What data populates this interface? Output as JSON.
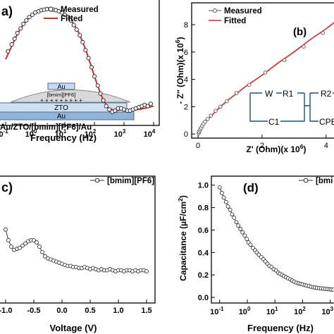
{
  "chart_data": [
    {
      "panel": "a",
      "panel_label": "a)",
      "type": "scatter",
      "xscale": "log",
      "xlabel": "Frequency (Hz)",
      "xlim": [
        0.1,
        10000
      ],
      "xticks": [
        {
          "value": 0.1,
          "base": "10",
          "exp": "-1"
        },
        {
          "value": 1,
          "base": "10",
          "exp": "0"
        },
        {
          "value": 10,
          "base": "10",
          "exp": "1"
        },
        {
          "value": 100,
          "base": "10",
          "exp": "2"
        },
        {
          "value": 1000,
          "base": "10",
          "exp": "3"
        },
        {
          "value": 10000,
          "base": "10",
          "exp": "4"
        }
      ],
      "ylim": [
        0,
        1
      ],
      "legend": "top-right",
      "series": [
        {
          "name": "Measured",
          "style": "open-circle",
          "color": "#222222",
          "x": [
            0.12,
            0.16,
            0.2,
            0.25,
            0.32,
            0.4,
            0.5,
            0.63,
            0.8,
            1,
            1.3,
            1.6,
            2,
            2.5,
            3.2,
            4,
            5,
            6.3,
            8,
            10,
            13,
            16,
            20,
            25,
            32,
            40,
            50,
            63,
            80,
            100,
            130,
            160,
            200,
            250,
            320,
            400,
            500,
            630,
            800,
            1000,
            1300,
            1600,
            2000,
            2500,
            3200,
            4000,
            5000,
            6300,
            8000
          ],
          "y": [
            0.6,
            0.66,
            0.71,
            0.76,
            0.8,
            0.84,
            0.87,
            0.9,
            0.92,
            0.94,
            0.95,
            0.96,
            0.965,
            0.97,
            0.97,
            0.965,
            0.96,
            0.95,
            0.94,
            0.92,
            0.9,
            0.87,
            0.83,
            0.79,
            0.74,
            0.68,
            0.61,
            0.54,
            0.46,
            0.38,
            0.3,
            0.23,
            0.17,
            0.12,
            0.09,
            0.07,
            0.08,
            0.1,
            0.1,
            0.09,
            0.08,
            0.08,
            0.09,
            0.1,
            0.11,
            0.12,
            0.13,
            0.12,
            0.14
          ]
        },
        {
          "name": "Fitted",
          "style": "line",
          "color": "#d62728",
          "x": [
            0.1,
            0.2,
            0.3,
            0.5,
            0.8,
            1,
            1.5,
            2,
            3,
            5,
            8,
            10,
            15,
            20,
            30,
            50,
            80,
            100,
            150,
            200,
            300,
            500,
            800,
            1000,
            1500,
            2000,
            3000,
            5000,
            10000
          ],
          "y": [
            0.53,
            0.7,
            0.79,
            0.87,
            0.92,
            0.94,
            0.96,
            0.965,
            0.965,
            0.955,
            0.935,
            0.92,
            0.88,
            0.84,
            0.76,
            0.62,
            0.46,
            0.38,
            0.25,
            0.17,
            0.1,
            0.08,
            0.09,
            0.09,
            0.085,
            0.085,
            0.09,
            0.1,
            0.12
          ]
        }
      ],
      "inset": {
        "labels": [
          "Au",
          "[bmim][PF6]",
          "+ + + + + + + + +",
          "ZTO",
          "Au"
        ],
        "caption": "Au/ZTO/[bmim][PF6]/Au"
      }
    },
    {
      "panel": "b",
      "panel_label": "(b)",
      "type": "scatter",
      "xlabel_parts": {
        "pre": "Z' (Ohm)(x 10",
        "exp": "6",
        "post": ")"
      },
      "ylabel_parts": {
        "pre": "- Z'' (Ohm)(x 10",
        "exp": "6",
        "post": ")"
      },
      "xlim": [
        -0.2,
        4.6
      ],
      "ylim": [
        -0.3,
        9.6
      ],
      "xticks": [
        0,
        2,
        4
      ],
      "yticks": [
        0,
        2,
        4,
        6,
        8
      ],
      "legend": "top-left",
      "series": [
        {
          "name": "Measured",
          "style": "open-circle",
          "color": "#555555",
          "x": [
            0.02,
            0.03,
            0.05,
            0.07,
            0.1,
            0.13,
            0.17,
            0.22,
            0.3,
            0.4,
            0.55,
            0.7,
            0.9,
            1.2,
            1.6,
            2.1,
            2.7,
            3.3,
            3.9,
            4.3
          ],
          "y": [
            0.05,
            0.15,
            0.25,
            0.35,
            0.45,
            0.6,
            0.75,
            0.9,
            1.1,
            1.35,
            1.7,
            2.0,
            2.4,
            3.0,
            3.6,
            4.5,
            5.4,
            6.4,
            7.4,
            8.2
          ]
        },
        {
          "name": "Fitted",
          "style": "line",
          "color": "#d62728",
          "x": [
            0,
            0.05,
            0.1,
            0.2,
            0.4,
            0.7,
            1.0,
            1.5,
            2.0,
            2.5,
            3.0,
            3.5,
            4.0,
            4.5
          ],
          "y": [
            0,
            0.3,
            0.5,
            0.8,
            1.3,
            2.0,
            2.6,
            3.5,
            4.3,
            5.2,
            6.0,
            6.9,
            7.7,
            8.6
          ]
        }
      ],
      "circuit": {
        "labels": [
          "W",
          "R1",
          "R2",
          "C1",
          "CPE"
        ]
      }
    },
    {
      "panel": "c",
      "panel_label": "c)",
      "type": "line",
      "xlabel": "Voltage (V)",
      "xlim": [
        -1.1,
        1.6
      ],
      "xticks": [
        -1.0,
        -0.5,
        0.0,
        0.5,
        1.0,
        1.5
      ],
      "xtick_labels": [
        "-1.0",
        "-0.5",
        "0.0",
        "0.5",
        "1.0",
        "1.5"
      ],
      "ylim": [
        0,
        1
      ],
      "legend": "top-right",
      "series": [
        {
          "name": "[bmim][PF6]",
          "style": "line-open-circle",
          "color": "#333333",
          "x": [
            -1.0,
            -0.95,
            -0.9,
            -0.85,
            -0.8,
            -0.75,
            -0.7,
            -0.65,
            -0.6,
            -0.55,
            -0.5,
            -0.45,
            -0.4,
            -0.35,
            -0.3,
            -0.25,
            -0.2,
            -0.15,
            -0.1,
            -0.05,
            0.0,
            0.05,
            0.1,
            0.15,
            0.2,
            0.25,
            0.3,
            0.35,
            0.4,
            0.45,
            0.5,
            0.55,
            0.6,
            0.65,
            0.7,
            0.75,
            0.8,
            0.85,
            0.9,
            0.95,
            1.0,
            1.05,
            1.1,
            1.15,
            1.2,
            1.25,
            1.3,
            1.35,
            1.4,
            1.45,
            1.5
          ],
          "y": [
            0.62,
            0.52,
            0.46,
            0.43,
            0.44,
            0.45,
            0.47,
            0.49,
            0.51,
            0.52,
            0.52,
            0.5,
            0.46,
            0.41,
            0.37,
            0.35,
            0.34,
            0.33,
            0.32,
            0.31,
            0.3,
            0.29,
            0.28,
            0.28,
            0.27,
            0.27,
            0.26,
            0.26,
            0.27,
            0.26,
            0.25,
            0.26,
            0.25,
            0.24,
            0.25,
            0.24,
            0.24,
            0.25,
            0.24,
            0.23,
            0.24,
            0.24,
            0.23,
            0.24,
            0.24,
            0.23,
            0.24,
            0.23,
            0.24,
            0.24,
            0.23
          ]
        }
      ]
    },
    {
      "panel": "d",
      "panel_label": "(d)",
      "type": "line",
      "xscale": "log",
      "xlabel": "Frequency (Hz)",
      "ylabel_parts": {
        "pre": "Capacitance (µF/cm",
        "exp": "2",
        "post": ")"
      },
      "xlim": [
        0.05,
        3500
      ],
      "ylim": [
        -0.05,
        1.08
      ],
      "xticks": [
        {
          "value": 0.1,
          "base": "10",
          "exp": "-1"
        },
        {
          "value": 1,
          "base": "10",
          "exp": "0"
        },
        {
          "value": 10,
          "base": "10",
          "exp": "1"
        },
        {
          "value": 100,
          "base": "10",
          "exp": "2"
        },
        {
          "value": 1000,
          "base": "10",
          "exp": "3"
        }
      ],
      "yticks": [
        0.0,
        0.2,
        0.4,
        0.6,
        0.8,
        1.0
      ],
      "ytick_labels": [
        "0.0",
        "0.2",
        "0.4",
        "0.6",
        "0.8",
        "1.0"
      ],
      "legend": "top-right",
      "series": [
        {
          "name": "[bmi",
          "style": "line-open-circle",
          "color": "#333333",
          "x": [
            0.1,
            0.12,
            0.14,
            0.17,
            0.2,
            0.24,
            0.28,
            0.33,
            0.4,
            0.47,
            0.56,
            0.67,
            0.8,
            0.95,
            1.1,
            1.3,
            1.6,
            1.9,
            2.2,
            2.6,
            3.2,
            3.8,
            4.5,
            5.3,
            6.3,
            7.5,
            9,
            11,
            13,
            15,
            18,
            21,
            25,
            30,
            36,
            42,
            50,
            60,
            71,
            85,
            100,
            120,
            140,
            170,
            200,
            240,
            280,
            330,
            400,
            470,
            560,
            670,
            800,
            950,
            1100,
            1300,
            1600,
            1900,
            2200,
            2600,
            3000
          ],
          "y": [
            0.98,
            0.93,
            0.89,
            0.85,
            0.81,
            0.78,
            0.74,
            0.71,
            0.67,
            0.64,
            0.61,
            0.58,
            0.55,
            0.52,
            0.49,
            0.47,
            0.44,
            0.42,
            0.4,
            0.38,
            0.36,
            0.34,
            0.32,
            0.3,
            0.28,
            0.27,
            0.25,
            0.24,
            0.22,
            0.21,
            0.2,
            0.19,
            0.18,
            0.17,
            0.16,
            0.15,
            0.14,
            0.13,
            0.125,
            0.12,
            0.115,
            0.11,
            0.105,
            0.1,
            0.095,
            0.09,
            0.088,
            0.085,
            0.082,
            0.08,
            0.078,
            0.076,
            0.074,
            0.072,
            0.07,
            0.068,
            0.066,
            0.064,
            0.063,
            0.062,
            0.06
          ]
        }
      ]
    }
  ]
}
